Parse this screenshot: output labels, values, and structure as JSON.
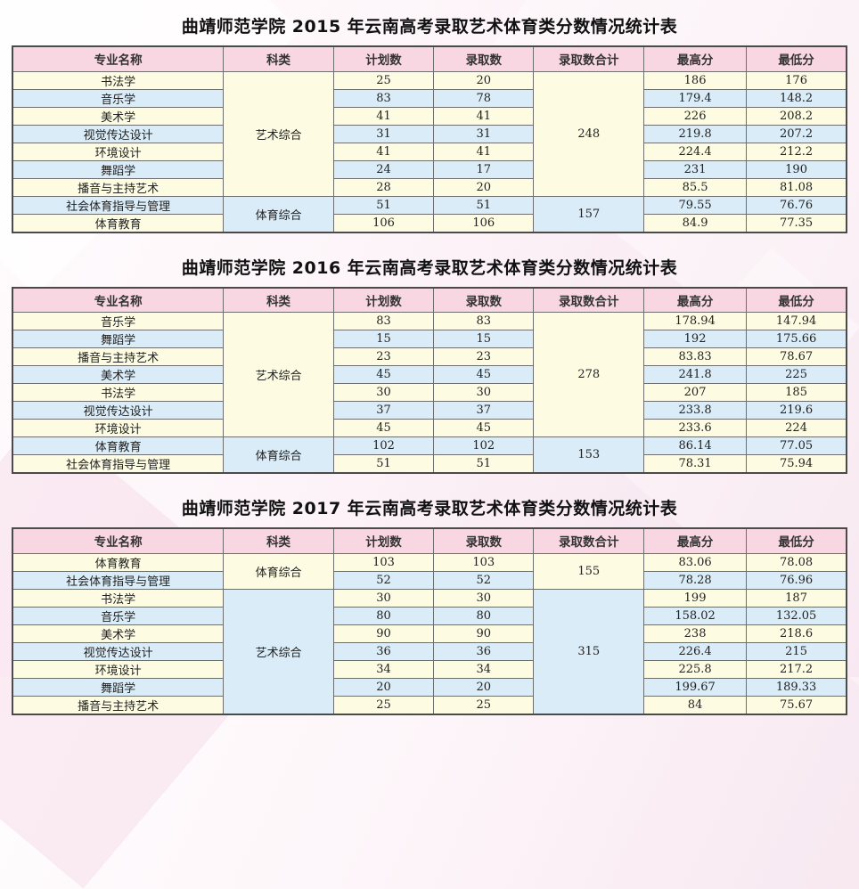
{
  "colors": {
    "header_bg": "#f8d7e3",
    "row_cream": "#fdfce3",
    "row_blue": "#d9ecf8",
    "border_dark": "#4a4a4a",
    "border_mid": "#6e6e6e",
    "title_color": "#111111"
  },
  "columns": [
    "专业名称",
    "科类",
    "计划数",
    "录取数",
    "录取数合计",
    "最高分",
    "最低分"
  ],
  "tables": [
    {
      "title": "曲靖师范学院 2015 年云南高考录取艺术体育类分数情况统计表",
      "groups": [
        {
          "category": "艺术综合",
          "total": "248",
          "rows": [
            {
              "major": "书法学",
              "plan": "25",
              "admitted": "20",
              "max": "186",
              "min": "176"
            },
            {
              "major": "音乐学",
              "plan": "83",
              "admitted": "78",
              "max": "179.4",
              "min": "148.2"
            },
            {
              "major": "美术学",
              "plan": "41",
              "admitted": "41",
              "max": "226",
              "min": "208.2"
            },
            {
              "major": "视觉传达设计",
              "plan": "31",
              "admitted": "31",
              "max": "219.8",
              "min": "207.2"
            },
            {
              "major": "环境设计",
              "plan": "41",
              "admitted": "41",
              "max": "224.4",
              "min": "212.2"
            },
            {
              "major": "舞蹈学",
              "plan": "24",
              "admitted": "17",
              "max": "231",
              "min": "190"
            },
            {
              "major": "播音与主持艺术",
              "plan": "28",
              "admitted": "20",
              "max": "85.5",
              "min": "81.08"
            }
          ]
        },
        {
          "category": "体育综合",
          "total": "157",
          "rows": [
            {
              "major": "社会体育指导与管理",
              "plan": "51",
              "admitted": "51",
              "max": "79.55",
              "min": "76.76"
            },
            {
              "major": "体育教育",
              "plan": "106",
              "admitted": "106",
              "max": "84.9",
              "min": "77.35"
            }
          ]
        }
      ]
    },
    {
      "title": "曲靖师范学院 2016 年云南高考录取艺术体育类分数情况统计表",
      "groups": [
        {
          "category": "艺术综合",
          "total": "278",
          "rows": [
            {
              "major": "音乐学",
              "plan": "83",
              "admitted": "83",
              "max": "178.94",
              "min": "147.94"
            },
            {
              "major": "舞蹈学",
              "plan": "15",
              "admitted": "15",
              "max": "192",
              "min": "175.66"
            },
            {
              "major": "播音与主持艺术",
              "plan": "23",
              "admitted": "23",
              "max": "83.83",
              "min": "78.67"
            },
            {
              "major": "美术学",
              "plan": "45",
              "admitted": "45",
              "max": "241.8",
              "min": "225"
            },
            {
              "major": "书法学",
              "plan": "30",
              "admitted": "30",
              "max": "207",
              "min": "185"
            },
            {
              "major": "视觉传达设计",
              "plan": "37",
              "admitted": "37",
              "max": "233.8",
              "min": "219.6"
            },
            {
              "major": "环境设计",
              "plan": "45",
              "admitted": "45",
              "max": "233.6",
              "min": "224"
            }
          ]
        },
        {
          "category": "体育综合",
          "total": "153",
          "rows": [
            {
              "major": "体育教育",
              "plan": "102",
              "admitted": "102",
              "max": "86.14",
              "min": "77.05"
            },
            {
              "major": "社会体育指导与管理",
              "plan": "51",
              "admitted": "51",
              "max": "78.31",
              "min": "75.94"
            }
          ]
        }
      ]
    },
    {
      "title": "曲靖师范学院 2017 年云南高考录取艺术体育类分数情况统计表",
      "groups": [
        {
          "category": "体育综合",
          "total": "155",
          "rows": [
            {
              "major": "体育教育",
              "plan": "103",
              "admitted": "103",
              "max": "83.06",
              "min": "78.08"
            },
            {
              "major": "社会体育指导与管理",
              "plan": "52",
              "admitted": "52",
              "max": "78.28",
              "min": "76.96"
            }
          ]
        },
        {
          "category": "艺术综合",
          "total": "315",
          "rows": [
            {
              "major": "书法学",
              "plan": "30",
              "admitted": "30",
              "max": "199",
              "min": "187"
            },
            {
              "major": "音乐学",
              "plan": "80",
              "admitted": "80",
              "max": "158.02",
              "min": "132.05"
            },
            {
              "major": "美术学",
              "plan": "90",
              "admitted": "90",
              "max": "238",
              "min": "218.6"
            },
            {
              "major": "视觉传达设计",
              "plan": "36",
              "admitted": "36",
              "max": "226.4",
              "min": "215"
            },
            {
              "major": "环境设计",
              "plan": "34",
              "admitted": "34",
              "max": "225.8",
              "min": "217.2"
            },
            {
              "major": "舞蹈学",
              "plan": "20",
              "admitted": "20",
              "max": "199.67",
              "min": "189.33"
            },
            {
              "major": "播音与主持艺术",
              "plan": "25",
              "admitted": "25",
              "max": "84",
              "min": "75.67"
            }
          ]
        }
      ]
    }
  ]
}
